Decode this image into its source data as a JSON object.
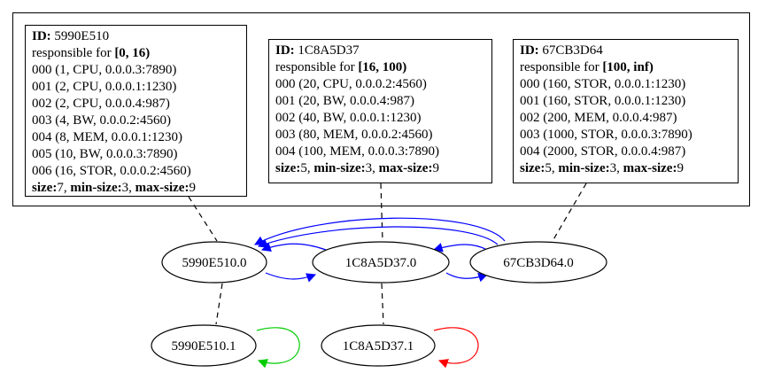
{
  "cards": [
    {
      "id_label": "ID:",
      "id_value": "5990E510",
      "resp_prefix": "responsible for",
      "resp_range": "[0, 16)",
      "entries": [
        "000 (1, CPU, 0.0.0.3:7890)",
        "001 (2, CPU, 0.0.0.1:1230)",
        "002 (2, CPU, 0.0.0.4:987)",
        "003 (4, BW, 0.0.0.2:4560)",
        "004 (8, MEM, 0.0.0.1:1230)",
        "005 (10, BW, 0.0.0.3:7890)",
        "006 (16, STOR, 0.0.0.2:4560)"
      ],
      "size_label": "size:",
      "size": "7",
      "min_label": "min-size:",
      "min": "3",
      "max_label": "max-size:",
      "max": "9"
    },
    {
      "id_label": "ID:",
      "id_value": "1C8A5D37",
      "resp_prefix": "responsible for",
      "resp_range": "[16, 100)",
      "entries": [
        "000 (20, CPU, 0.0.0.2:4560)",
        "001 (20, BW, 0.0.0.4:987)",
        "002 (40, BW, 0.0.0.1:1230)",
        "003 (80, MEM, 0.0.0.2:4560)",
        "004 (100, MEM, 0.0.0.3:7890)"
      ],
      "size_label": "size:",
      "size": "5",
      "min_label": "min-size:",
      "min": "3",
      "max_label": "max-size:",
      "max": "9"
    },
    {
      "id_label": "ID:",
      "id_value": "67CB3D64",
      "resp_prefix": "responsible for",
      "resp_range": "[100, inf)",
      "entries": [
        "000 (160, STOR, 0.0.0.1:1230)",
        "001 (160, STOR, 0.0.0.1:1230)",
        "002 (200, MEM, 0.0.0.4:987)",
        "003 (1000, STOR, 0.0.0.3:7890)",
        "004 (2000, STOR, 0.0.0.4:987)"
      ],
      "size_label": "size:",
      "size": "5",
      "min_label": "min-size:",
      "min": "3",
      "max_label": "max-size:",
      "max": "9"
    }
  ],
  "nodes": [
    "5990E510.0",
    "1C8A5D37.0",
    "67CB3D64.0",
    "5990E510.1",
    "1C8A5D37.1"
  ],
  "colors": {
    "edge_forward": "#0000ff",
    "edge_back": "#0000ff",
    "loop_green": "#00cc00",
    "loop_red": "#ff0000",
    "dashed": "#000000"
  }
}
